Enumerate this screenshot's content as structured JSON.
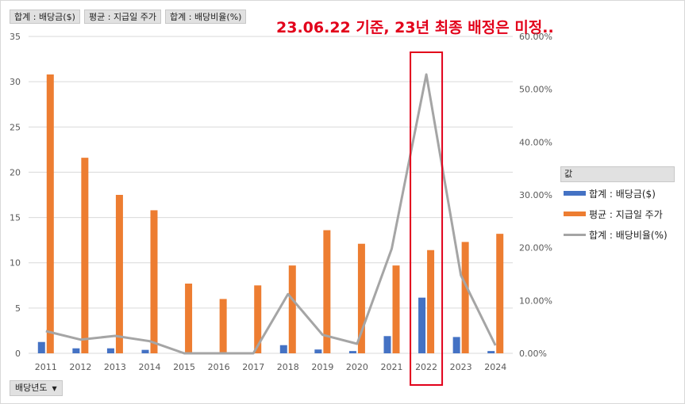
{
  "field_buttons": [
    "합계 : 배당금($)",
    "평균 : 지급일 주가",
    "합계 : 배당비율(%)"
  ],
  "annotation": "23.06.22 기준, 23년 최종 배정은 미정..",
  "legend_title": "값",
  "axis_field_button": "배당년도",
  "colors": {
    "dividend": "#4472c4",
    "price": "#ed7d31",
    "ratio": "#a5a5a5",
    "highlight": "#e2001a"
  },
  "chart_data": {
    "type": "bar",
    "title": "",
    "categories": [
      "2011",
      "2012",
      "2013",
      "2014",
      "2015",
      "2016",
      "2017",
      "2018",
      "2019",
      "2020",
      "2021",
      "2022",
      "2023",
      "2024"
    ],
    "ylim": [
      0,
      35
    ],
    "y_ticks": [
      "0",
      "5",
      "10",
      "15",
      "20",
      "25",
      "30",
      "35"
    ],
    "y2lim": [
      0,
      0.6
    ],
    "y2_ticks": [
      "0.00%",
      "10.00%",
      "20.00%",
      "30.00%",
      "40.00%",
      "50.00%",
      "60.00%"
    ],
    "highlight_category": "2022",
    "series": [
      {
        "name": "합계 : 배당금($)",
        "type": "bar",
        "axis": "left",
        "values": [
          1.25,
          0.55,
          0.55,
          0.38,
          0.0,
          0.0,
          0.0,
          0.9,
          0.42,
          0.25,
          1.9,
          6.15,
          1.8,
          0.25
        ]
      },
      {
        "name": "평균 : 지급일 주가",
        "type": "bar",
        "axis": "left",
        "values": [
          30.8,
          21.6,
          17.5,
          15.8,
          7.7,
          6.0,
          7.5,
          9.7,
          13.6,
          12.1,
          9.7,
          11.4,
          12.3,
          13.2
        ]
      },
      {
        "name": "합계 : 배당비율(%)",
        "type": "line",
        "axis": "right",
        "values": [
          0.042,
          0.026,
          0.033,
          0.023,
          0.0,
          0.0,
          0.0,
          0.112,
          0.035,
          0.018,
          0.198,
          0.528,
          0.148,
          0.015
        ]
      }
    ]
  }
}
